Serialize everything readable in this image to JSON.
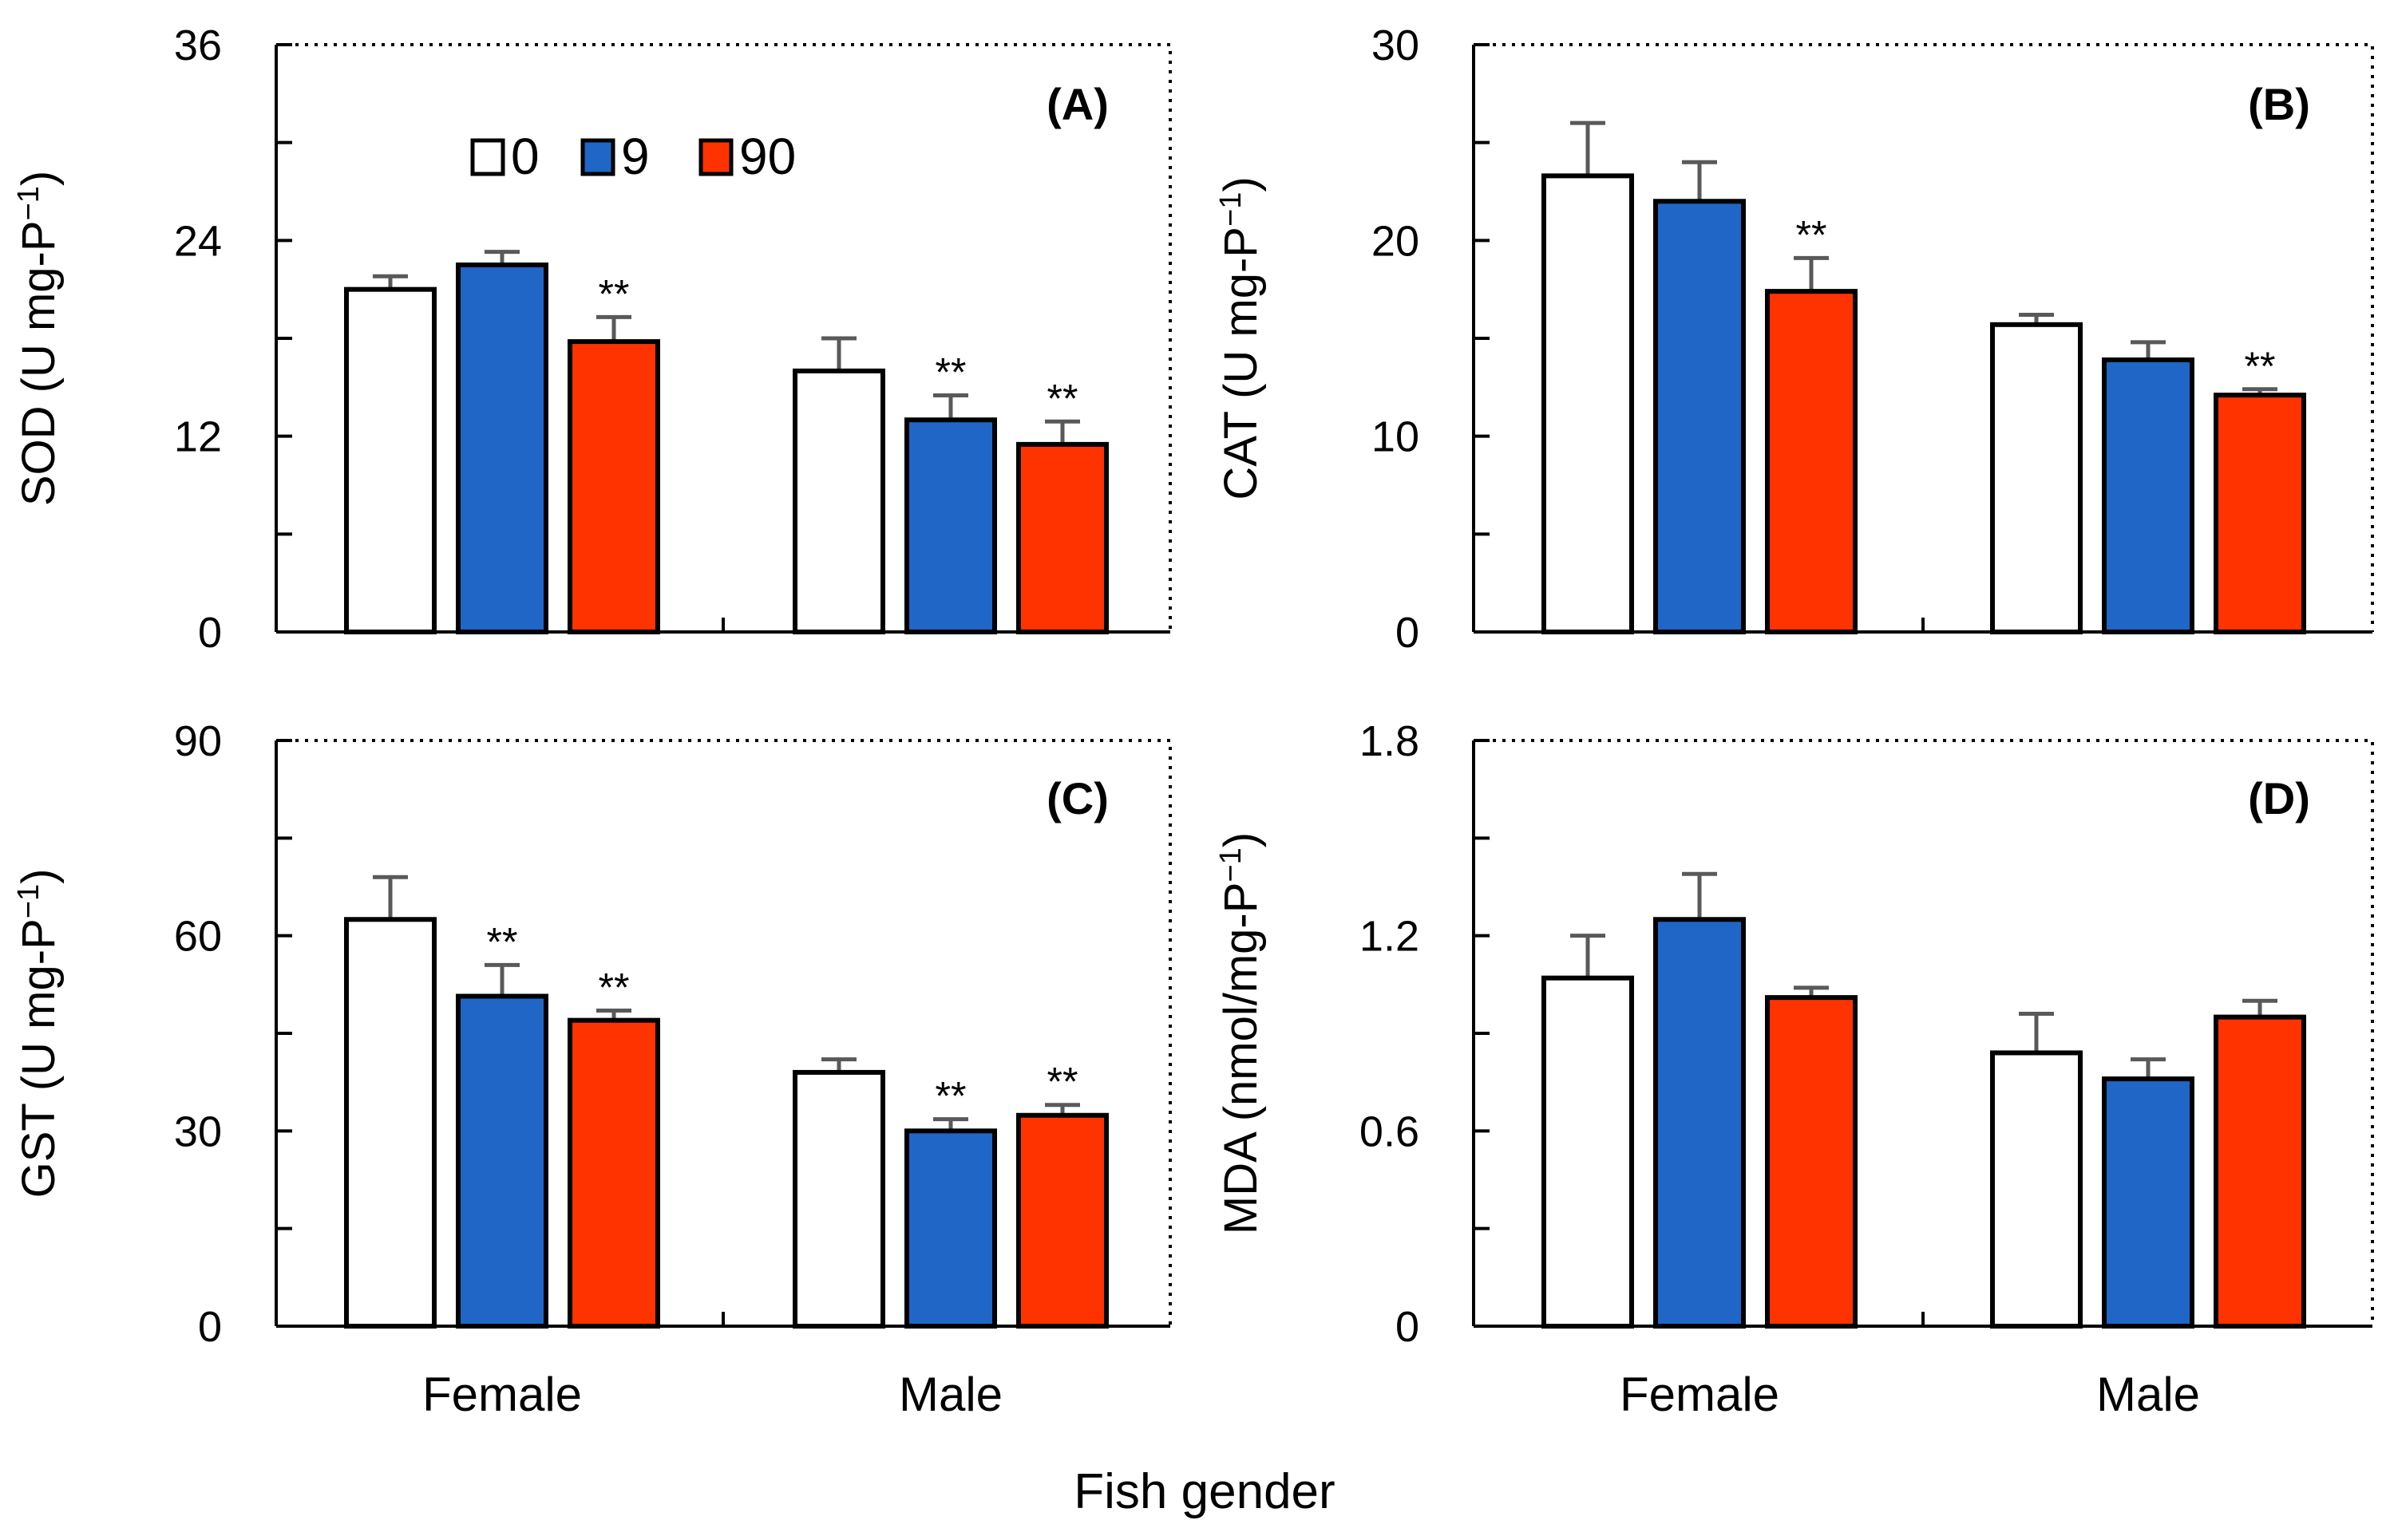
{
  "chart_data": [
    {
      "type": "bar",
      "panel": "(A)",
      "title": "",
      "ylabel_main": "SOD (U mg-P",
      "ylabel_sup": "−1",
      "ylabel_tail": ")",
      "ylim": [
        0,
        36
      ],
      "yticks": [
        "0",
        "12",
        "24",
        "36"
      ],
      "categories": [
        "Female",
        "Male"
      ],
      "series": [
        {
          "name": "0",
          "values": [
            21.0,
            16.0
          ],
          "errors": [
            0.8,
            2.0
          ],
          "sig": [
            "",
            ""
          ]
        },
        {
          "name": "9",
          "values": [
            22.5,
            13.0
          ],
          "errors": [
            0.8,
            1.5
          ],
          "sig": [
            "",
            "**"
          ]
        },
        {
          "name": "90",
          "values": [
            17.8,
            11.5
          ],
          "errors": [
            1.5,
            1.4
          ],
          "sig": [
            "**",
            "**"
          ]
        }
      ]
    },
    {
      "type": "bar",
      "panel": "(B)",
      "title": "",
      "ylabel_main": "CAT (U mg-P",
      "ylabel_sup": "−1",
      "ylabel_tail": ")",
      "ylim": [
        0,
        30
      ],
      "yticks": [
        "0",
        "10",
        "20",
        "30"
      ],
      "categories": [
        "Female",
        "Male"
      ],
      "series": [
        {
          "name": "0",
          "values": [
            23.3,
            15.7
          ],
          "errors": [
            2.7,
            0.5
          ],
          "sig": [
            "",
            ""
          ]
        },
        {
          "name": "9",
          "values": [
            22.0,
            13.9
          ],
          "errors": [
            2.0,
            0.9
          ],
          "sig": [
            "",
            ""
          ]
        },
        {
          "name": "90",
          "values": [
            17.4,
            12.1
          ],
          "errors": [
            1.7,
            0.3
          ],
          "sig": [
            "**",
            "**"
          ]
        }
      ]
    },
    {
      "type": "bar",
      "panel": "(C)",
      "title": "",
      "ylabel_main": "GST (U mg-P",
      "ylabel_sup": "−1",
      "ylabel_tail": ")",
      "ylim": [
        0,
        90
      ],
      "yticks": [
        "0",
        "30",
        "60",
        "90"
      ],
      "categories": [
        "Female",
        "Male"
      ],
      "series": [
        {
          "name": "0",
          "values": [
            62.5,
            39.0
          ],
          "errors": [
            6.5,
            2.0
          ],
          "sig": [
            "",
            ""
          ]
        },
        {
          "name": "9",
          "values": [
            50.7,
            30.0
          ],
          "errors": [
            4.8,
            1.8
          ],
          "sig": [
            "**",
            "**"
          ]
        },
        {
          "name": "90",
          "values": [
            47.0,
            32.4
          ],
          "errors": [
            1.5,
            1.6
          ],
          "sig": [
            "**",
            "**"
          ]
        }
      ]
    },
    {
      "type": "bar",
      "panel": "(D)",
      "title": "",
      "ylabel_main": "MDA (nmol/mg-P",
      "ylabel_sup": "−1",
      "ylabel_tail": ")",
      "ylim": [
        0,
        1.8
      ],
      "yticks": [
        "0",
        "0.6",
        "1.2",
        "1.8"
      ],
      "categories": [
        "Female",
        "Male"
      ],
      "series": [
        {
          "name": "0",
          "values": [
            1.07,
            0.84
          ],
          "errors": [
            0.13,
            0.12
          ],
          "sig": [
            "",
            ""
          ]
        },
        {
          "name": "9",
          "values": [
            1.25,
            0.76
          ],
          "errors": [
            0.14,
            0.06
          ],
          "sig": [
            "",
            ""
          ]
        },
        {
          "name": "90",
          "values": [
            1.01,
            0.95
          ],
          "errors": [
            0.03,
            0.05
          ],
          "sig": [
            "",
            ""
          ]
        }
      ]
    }
  ],
  "legend": {
    "entries": [
      "0",
      "9",
      "90"
    ],
    "colors": [
      "#ffffff",
      "#1f66c7",
      "#ff3300"
    ]
  },
  "xlabel": "Fish gender",
  "colors": {
    "bar_outline": "#000000",
    "error_bar": "#595959"
  }
}
